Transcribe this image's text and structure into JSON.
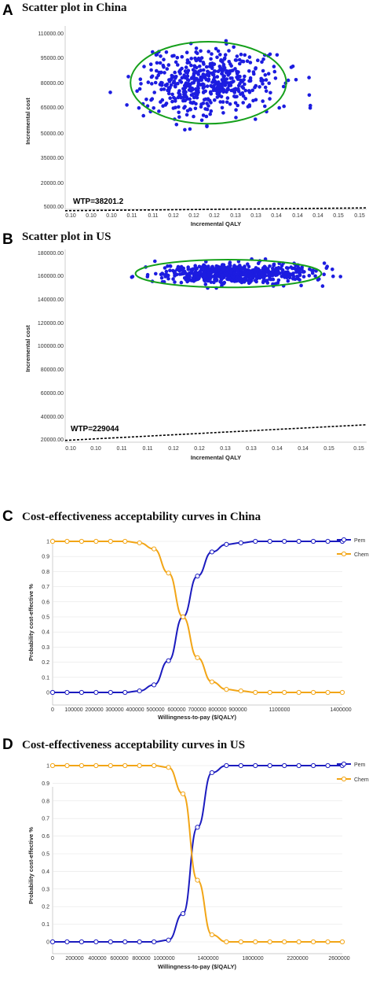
{
  "panels": [
    {
      "panel_label": "A",
      "title": "Scatter plot in China",
      "kind": "scatter",
      "xlabel": "Incremental QALY",
      "ylabel": "Incremental cost",
      "x_ticks": [
        "0.10",
        "0.10",
        "0.10",
        "0.11",
        "0.11",
        "0.12",
        "0.12",
        "0.12",
        "0.13",
        "0.13",
        "0.14",
        "0.14",
        "0.14",
        "0.15",
        "0.15"
      ],
      "y_ticks": [
        "5000.00",
        "20000.00",
        "35000.00",
        "50000.00",
        "65000.00",
        "80000.00",
        "95000.00",
        "110000.00"
      ],
      "wtp_label": "WTP=38201.2",
      "ellipse_color": "#16a01c",
      "point_color": "#1c1ce0"
    },
    {
      "panel_label": "B",
      "title": "Scatter plot in US",
      "kind": "scatter",
      "xlabel": "Incremental QALY",
      "ylabel": "Incremental cost",
      "x_ticks": [
        "0.10",
        "0.10",
        "0.11",
        "0.11",
        "0.12",
        "0.12",
        "0.13",
        "0.13",
        "0.14",
        "0.14",
        "0.15",
        "0.15"
      ],
      "y_ticks": [
        "20000.00",
        "40000.00",
        "60000.00",
        "80000.00",
        "100000.00",
        "120000.00",
        "140000.00",
        "160000.00",
        "180000.00"
      ],
      "wtp_label": "WTP=229044",
      "ellipse_color": "#16a01c",
      "point_color": "#1c1ce0"
    },
    {
      "panel_label": "C",
      "title": "Cost-effectiveness acceptability curves in China",
      "kind": "ceac",
      "xlabel": "Willingness-to-pay ($/QALY)",
      "ylabel": "Probability cost-effective %",
      "x_ticks": [
        "0",
        "100000",
        "200000",
        "300000",
        "400000",
        "500000",
        "600000",
        "700000",
        "800000",
        "900000",
        "1100000",
        "1400000"
      ],
      "y_ticks": [
        "0",
        "0.1",
        "0.2",
        "0.3",
        "0.4",
        "0.5",
        "0.6",
        "0.7",
        "0.8",
        "0.9",
        "1"
      ],
      "legend": [
        {
          "name": "Pem",
          "color": "#1b1bbf"
        },
        {
          "name": "Chem",
          "color": "#f2a516"
        }
      ]
    },
    {
      "panel_label": "D",
      "title": "Cost-effectiveness acceptability curves in US",
      "kind": "ceac",
      "xlabel": "Willingness-to-pay ($/QALY)",
      "ylabel": "Probability cost-effective %",
      "x_ticks": [
        "0",
        "200000",
        "400000",
        "600000",
        "800000",
        "1000000",
        "1400000",
        "1800000",
        "2200000",
        "2600000"
      ],
      "y_ticks": [
        "0",
        "0.1",
        "0.2",
        "0.3",
        "0.4",
        "0.5",
        "0.6",
        "0.7",
        "0.8",
        "0.9",
        "1"
      ],
      "legend": [
        {
          "name": "Pem",
          "color": "#1b1bbf"
        },
        {
          "name": "Chem",
          "color": "#f2a516"
        }
      ]
    }
  ],
  "chart_data": [
    {
      "type": "scatter",
      "title": "Scatter plot in China",
      "xlabel": "Incremental QALY",
      "ylabel": "Incremental cost",
      "xlim": [
        0.095,
        0.155
      ],
      "ylim": [
        5000,
        110000
      ],
      "cloud": {
        "center_x": 0.1235,
        "center_y": 77500,
        "spread_x": 0.0065,
        "spread_y": 9500,
        "n": 520,
        "x_range": [
          0.1,
          0.153
        ],
        "y_range": [
          48000,
          108000
        ]
      },
      "confidence_ellipse": {
        "center_x": 0.1235,
        "center_y": 77500,
        "half_width_x": 0.0155,
        "half_height_y": 23500
      },
      "wtp_line": {
        "label": "WTP=38201.2",
        "threshold": 38201.2,
        "points": [
          [
            0.095,
            4200
          ],
          [
            0.155,
            5800
          ]
        ]
      }
    },
    {
      "type": "scatter",
      "title": "Scatter plot in US",
      "xlabel": "Incremental QALY",
      "ylabel": "Incremental cost",
      "xlim": [
        0.095,
        0.155
      ],
      "ylim": [
        20000,
        180000
      ],
      "cloud": {
        "center_x": 0.1285,
        "center_y": 160000,
        "spread_x": 0.0075,
        "spread_y": 4000,
        "n": 620,
        "x_range": [
          0.102,
          0.152
        ],
        "y_range": [
          144000,
          172000
        ]
      },
      "confidence_ellipse": {
        "center_x": 0.1275,
        "center_y": 160000,
        "half_width_x": 0.0185,
        "half_height_y": 11500
      },
      "wtp_line": {
        "label": "WTP=229044",
        "threshold": 229044,
        "points": [
          [
            0.095,
            21500
          ],
          [
            0.155,
            34500
          ]
        ]
      }
    },
    {
      "type": "line",
      "title": "Cost-effectiveness acceptability curves in China",
      "xlabel": "Willingness-to-pay ($/QALY)",
      "ylabel": "Probability cost-effective %",
      "xlim": [
        0,
        1400000
      ],
      "ylim": [
        0,
        1
      ],
      "x": [
        0,
        70000,
        140000,
        210000,
        280000,
        350000,
        420000,
        490000,
        560000,
        630000,
        700000,
        770000,
        840000,
        910000,
        980000,
        1050000,
        1120000,
        1190000,
        1260000,
        1330000,
        1400000
      ],
      "series": [
        {
          "name": "Pem",
          "color": "#1b1bbf",
          "values": [
            0,
            0,
            0,
            0,
            0,
            0,
            0.01,
            0.05,
            0.21,
            0.5,
            0.77,
            0.93,
            0.98,
            0.99,
            1,
            1,
            1,
            1,
            1,
            1,
            1
          ]
        },
        {
          "name": "Chem",
          "color": "#f2a516",
          "values": [
            1,
            1,
            1,
            1,
            1,
            1,
            0.99,
            0.95,
            0.79,
            0.5,
            0.23,
            0.07,
            0.02,
            0.01,
            0,
            0,
            0,
            0,
            0,
            0,
            0
          ]
        }
      ],
      "legend_position": "top-right"
    },
    {
      "type": "line",
      "title": "Cost-effectiveness acceptability curves in US",
      "xlabel": "Willingness-to-pay ($/QALY)",
      "ylabel": "Probability cost-effective %",
      "xlim": [
        0,
        2600000
      ],
      "ylim": [
        0,
        1
      ],
      "x": [
        0,
        130000,
        260000,
        390000,
        520000,
        650000,
        780000,
        910000,
        1040000,
        1170000,
        1300000,
        1430000,
        1560000,
        1690000,
        1820000,
        1950000,
        2080000,
        2210000,
        2340000,
        2470000,
        2600000
      ],
      "series": [
        {
          "name": "Pem",
          "color": "#1b1bbf",
          "values": [
            0,
            0,
            0,
            0,
            0,
            0,
            0,
            0,
            0.01,
            0.16,
            0.65,
            0.96,
            1,
            1,
            1,
            1,
            1,
            1,
            1,
            1,
            1
          ]
        },
        {
          "name": "Chem",
          "color": "#f2a516",
          "values": [
            1,
            1,
            1,
            1,
            1,
            1,
            1,
            1,
            0.99,
            0.84,
            0.35,
            0.04,
            0,
            0,
            0,
            0,
            0,
            0,
            0,
            0,
            0
          ]
        }
      ],
      "legend_position": "top-right"
    }
  ]
}
